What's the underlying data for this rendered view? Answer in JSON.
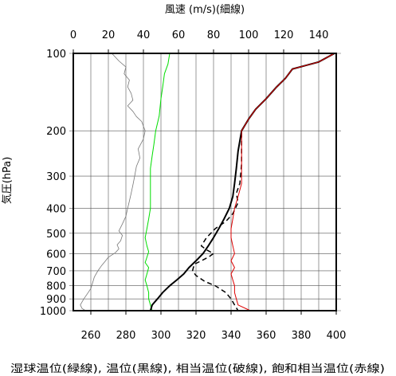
{
  "chart_data": {
    "type": "line",
    "title": "",
    "top_axis_label": "風速 (m/s)(細線)",
    "left_axis_label": "気圧(hPa)",
    "bottom_axis_label": "湿球温位(緑線), 温位(黒線), 相当温位(破線), 飽和相当温位(赤線)",
    "x_bottom": {
      "range": [
        250,
        400
      ],
      "ticks": [
        260,
        280,
        300,
        320,
        340,
        360,
        380,
        400
      ]
    },
    "x_top": {
      "range": [
        0,
        150
      ],
      "ticks": [
        0,
        20,
        40,
        60,
        80,
        100,
        120,
        140
      ]
    },
    "y": {
      "scale": "log",
      "reversed": true,
      "range": [
        100,
        1000
      ],
      "ticks": [
        100,
        200,
        300,
        400,
        500,
        600,
        700,
        800,
        900,
        1000
      ]
    },
    "grid": true,
    "series": [
      {
        "name": "湿球温位",
        "color": "#00dd00",
        "width": 1,
        "dash": false,
        "axis": "bottom",
        "points": [
          [
            305,
            100
          ],
          [
            304,
            110
          ],
          [
            302,
            120
          ],
          [
            301,
            135
          ],
          [
            300,
            150
          ],
          [
            299,
            175
          ],
          [
            297,
            200
          ],
          [
            296,
            225
          ],
          [
            295,
            250
          ],
          [
            294,
            280
          ],
          [
            294,
            320
          ],
          [
            294,
            360
          ],
          [
            294,
            400
          ],
          [
            293,
            440
          ],
          [
            292,
            480
          ],
          [
            291,
            520
          ],
          [
            292,
            560
          ],
          [
            293,
            590
          ],
          [
            292,
            620
          ],
          [
            291,
            650
          ],
          [
            293,
            680
          ],
          [
            292,
            720
          ],
          [
            291,
            760
          ],
          [
            292,
            800
          ],
          [
            293,
            850
          ],
          [
            293,
            900
          ],
          [
            294,
            950
          ],
          [
            295,
            1000
          ]
        ]
      },
      {
        "name": "温位",
        "color": "#000000",
        "width": 2,
        "dash": false,
        "axis": "bottom",
        "points": [
          [
            399,
            100
          ],
          [
            390,
            108
          ],
          [
            375,
            115
          ],
          [
            371,
            125
          ],
          [
            366,
            135
          ],
          [
            360,
            150
          ],
          [
            354,
            165
          ],
          [
            350,
            180
          ],
          [
            346,
            200
          ],
          [
            344,
            240
          ],
          [
            343,
            280
          ],
          [
            342,
            320
          ],
          [
            341,
            360
          ],
          [
            339,
            400
          ],
          [
            336,
            440
          ],
          [
            333,
            480
          ],
          [
            330,
            520
          ],
          [
            327,
            560
          ],
          [
            324,
            600
          ],
          [
            320,
            640
          ],
          [
            316,
            680
          ],
          [
            313,
            720
          ],
          [
            309,
            760
          ],
          [
            305,
            800
          ],
          [
            301,
            850
          ],
          [
            298,
            900
          ],
          [
            295,
            950
          ],
          [
            294,
            1000
          ]
        ]
      },
      {
        "name": "相当温位",
        "color": "#000000",
        "width": 1.5,
        "dash": true,
        "axis": "bottom",
        "points": [
          [
            399,
            100
          ],
          [
            390,
            108
          ],
          [
            375,
            115
          ],
          [
            371,
            125
          ],
          [
            366,
            135
          ],
          [
            360,
            150
          ],
          [
            354,
            165
          ],
          [
            350,
            180
          ],
          [
            346,
            200
          ],
          [
            346,
            230
          ],
          [
            346,
            270
          ],
          [
            345,
            320
          ],
          [
            343,
            350
          ],
          [
            344,
            380
          ],
          [
            341,
            420
          ],
          [
            337,
            450
          ],
          [
            331,
            480
          ],
          [
            326,
            520
          ],
          [
            323,
            560
          ],
          [
            326,
            580
          ],
          [
            330,
            600
          ],
          [
            327,
            620
          ],
          [
            323,
            640
          ],
          [
            319,
            660
          ],
          [
            318,
            700
          ],
          [
            320,
            730
          ],
          [
            325,
            770
          ],
          [
            331,
            800
          ],
          [
            337,
            850
          ],
          [
            340,
            900
          ],
          [
            342,
            950
          ],
          [
            344,
            1000
          ]
        ]
      },
      {
        "name": "飽和相当温位",
        "color": "#dd0000",
        "width": 1,
        "dash": false,
        "axis": "bottom",
        "points": [
          [
            399,
            100
          ],
          [
            390,
            108
          ],
          [
            375,
            115
          ],
          [
            371,
            125
          ],
          [
            366,
            135
          ],
          [
            360,
            150
          ],
          [
            354,
            165
          ],
          [
            350,
            180
          ],
          [
            346,
            200
          ],
          [
            346,
            230
          ],
          [
            346,
            270
          ],
          [
            346,
            320
          ],
          [
            344,
            360
          ],
          [
            342,
            400
          ],
          [
            341,
            440
          ],
          [
            340,
            480
          ],
          [
            340,
            520
          ],
          [
            341,
            560
          ],
          [
            342,
            600
          ],
          [
            340,
            640
          ],
          [
            342,
            680
          ],
          [
            340,
            720
          ],
          [
            341,
            760
          ],
          [
            342,
            800
          ],
          [
            342,
            850
          ],
          [
            343,
            900
          ],
          [
            344,
            950
          ],
          [
            351,
            1000
          ]
        ]
      },
      {
        "name": "風速",
        "color": "#777777",
        "width": 0.8,
        "dash": false,
        "axis": "top",
        "points": [
          [
            22,
            100
          ],
          [
            26,
            107
          ],
          [
            30,
            113
          ],
          [
            29,
            120
          ],
          [
            32,
            127
          ],
          [
            31,
            135
          ],
          [
            33,
            143
          ],
          [
            34,
            152
          ],
          [
            31,
            160
          ],
          [
            34,
            168
          ],
          [
            36,
            176
          ],
          [
            39,
            184
          ],
          [
            40,
            192
          ],
          [
            41,
            200
          ],
          [
            40,
            215
          ],
          [
            37,
            235
          ],
          [
            38,
            255
          ],
          [
            36,
            275
          ],
          [
            35,
            300
          ],
          [
            34,
            325
          ],
          [
            33,
            350
          ],
          [
            32,
            375
          ],
          [
            31,
            400
          ],
          [
            30,
            430
          ],
          [
            28,
            460
          ],
          [
            26,
            490
          ],
          [
            28,
            510
          ],
          [
            27,
            535
          ],
          [
            25,
            555
          ],
          [
            26,
            575
          ],
          [
            24,
            595
          ],
          [
            20,
            620
          ],
          [
            18,
            645
          ],
          [
            16,
            670
          ],
          [
            14,
            700
          ],
          [
            12,
            740
          ],
          [
            11,
            780
          ],
          [
            10,
            820
          ],
          [
            8,
            860
          ],
          [
            6,
            900
          ],
          [
            4,
            950
          ],
          [
            5,
            980
          ],
          [
            7,
            1000
          ]
        ]
      }
    ]
  }
}
